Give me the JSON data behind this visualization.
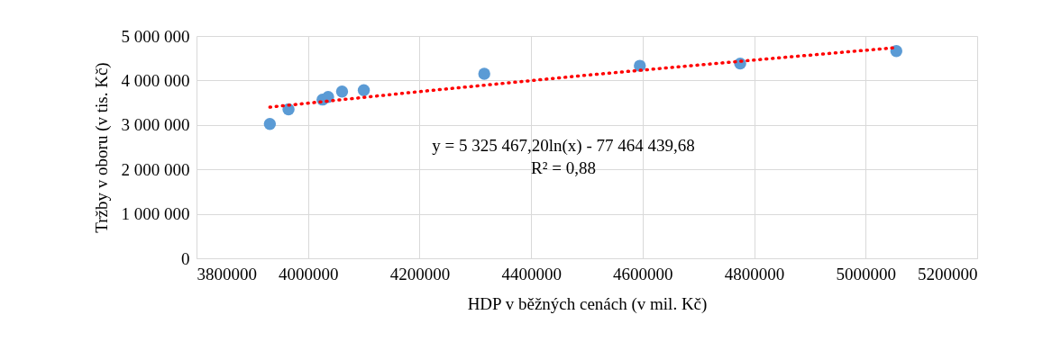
{
  "chart_data": {
    "type": "scatter",
    "xlabel": "HDP v běžných cenách (v mil. Kč)",
    "ylabel": "Tržby v oboru (v tis. Kč)",
    "series": [
      {
        "color": "#5b9bd5",
        "marker": "circle",
        "x": [
          3931500,
          3965000,
          4026000,
          4036000,
          4061000,
          4100000,
          4316000,
          4595000,
          4775000,
          5055000
        ],
        "values": [
          3020000,
          3350000,
          3570000,
          3630000,
          3750000,
          3780000,
          4150000,
          4330000,
          4380000,
          4660000
        ]
      },
      {
        "type": "line",
        "color": "#ff0000",
        "line_style": "dotted",
        "x": [
          3931500,
          4200000,
          4500000,
          4800000,
          5055000
        ],
        "values": [
          3400000,
          3750000,
          4120000,
          4460000,
          4740000
        ]
      }
    ],
    "xlim": [
      3800000,
      5200000
    ],
    "xticks": [
      3800000,
      4000000,
      4200000,
      4400000,
      4600000,
      4800000,
      5000000,
      5200000
    ],
    "ylim": [
      0,
      5000000
    ],
    "yticks": [
      {
        "value": 0,
        "label": "0"
      },
      {
        "value": 1000000,
        "label": "1 000 000"
      },
      {
        "value": 2000000,
        "label": "2 000 000"
      },
      {
        "value": 3000000,
        "label": "3 000 000"
      },
      {
        "value": 4000000,
        "label": "4 000 000"
      },
      {
        "value": 5000000,
        "label": "5 000 000"
      }
    ],
    "grid": true,
    "annotations": [
      "y = 5 325 467,20ln(x) - 77 464 439,68",
      "R² = 0,88"
    ]
  }
}
